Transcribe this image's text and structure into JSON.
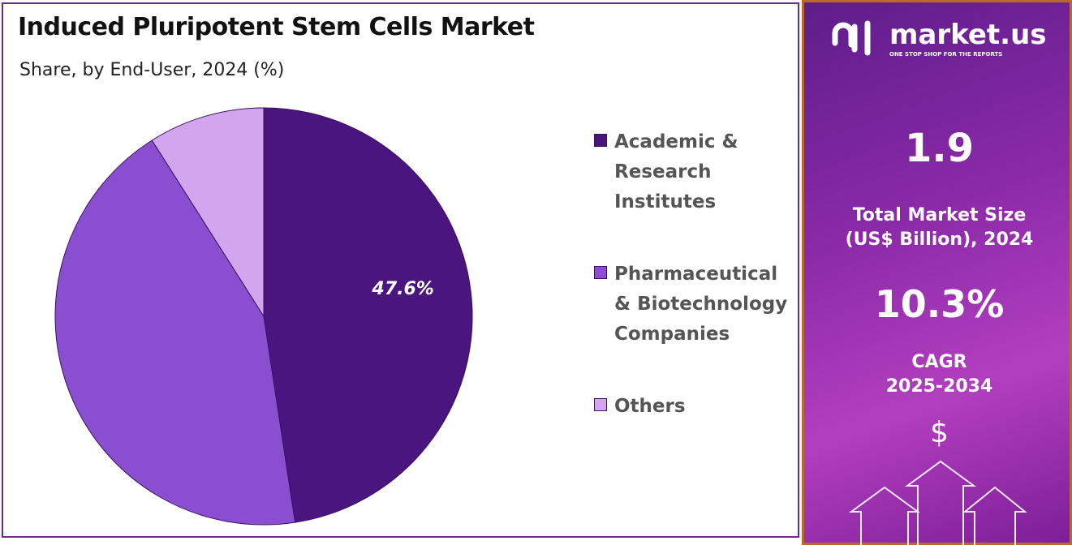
{
  "chart_data": {
    "type": "pie",
    "title": "Induced Pluripotent Stem Cells Market",
    "subtitle": "Share, by End-User, 2024 (%)",
    "categories": [
      "Academic & Research Institutes",
      "Pharmaceutical & Biotechnology Companies",
      "Others"
    ],
    "values": [
      47.6,
      43.4,
      9
    ],
    "value_labels": [
      "47.6%",
      null,
      null
    ],
    "colors": [
      "#4a157e",
      "#8a4fd0",
      "#d3a5ee"
    ],
    "start_angle": -90,
    "direction": "clockwise"
  },
  "panel": {
    "brand": "market.us",
    "tagline": "ONE STOP SHOP FOR THE REPORTS",
    "market_size": "1.9",
    "market_size_label": [
      "Total Market Size",
      "(US$ Billion), 2024"
    ],
    "cagr": "10.3%",
    "cagr_label": [
      "CAGR",
      "2025-2034"
    ],
    "currency": "$"
  }
}
